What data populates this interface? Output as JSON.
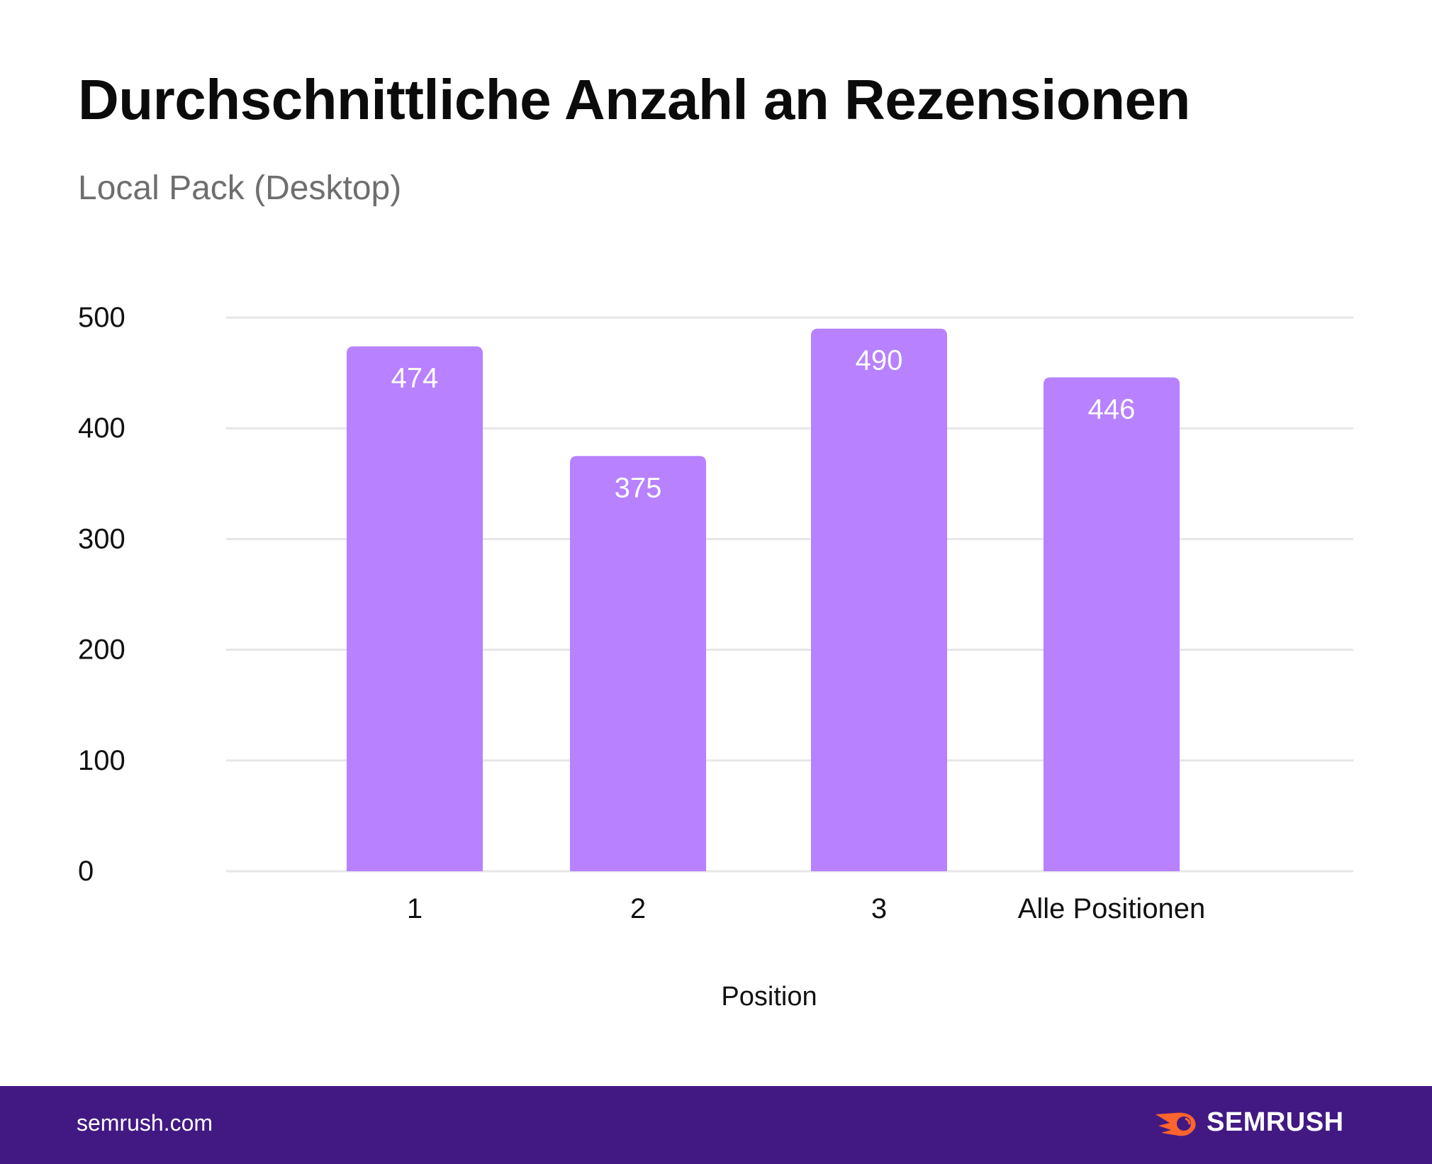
{
  "title": "Durchschnittliche Anzahl an Rezensionen",
  "subtitle": "Local Pack (Desktop)",
  "footer": {
    "site": "semrush.com",
    "logo_text": "SEMRUSH",
    "background": "#421983",
    "logo_accent": "#FF642D"
  },
  "chart_data": {
    "type": "bar",
    "categories": [
      "1",
      "2",
      "3",
      "Alle Positionen"
    ],
    "values": [
      474,
      375,
      490,
      446
    ],
    "data_labels": [
      "474",
      "375",
      "490",
      "446"
    ],
    "xlabel": "Position",
    "ylabel": "",
    "ylim": [
      0,
      500
    ],
    "yticks": [
      "0",
      "100",
      "200",
      "300",
      "400",
      "500"
    ],
    "grid": true,
    "bar_color": "#B781FF"
  }
}
